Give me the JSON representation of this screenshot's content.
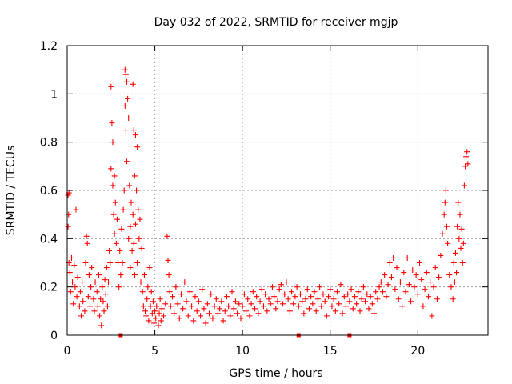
{
  "chart_data": {
    "type": "scatter",
    "title": "Day 032 of 2022, SRMTID for receiver mgjp",
    "xlabel": "GPS time / hours",
    "ylabel": "SRMTID / TECUs",
    "xlim": [
      0,
      24
    ],
    "ylim": [
      0,
      1.2
    ],
    "x_ticks": [
      0,
      5,
      10,
      15,
      20
    ],
    "x_tick_labels": [
      "0",
      "5",
      "10",
      "15",
      "20"
    ],
    "y_ticks": [
      0,
      0.2,
      0.4,
      0.6,
      0.8,
      1.0,
      1.2
    ],
    "y_tick_labels": [
      "0",
      "0.2",
      "0.4",
      "0.6",
      "0.8",
      "1",
      "1.2"
    ],
    "grid": true,
    "marker": "plus",
    "series": [
      {
        "name": "SRMTID",
        "color": "#ff0000",
        "points": [
          [
            0.05,
            0.58
          ],
          [
            0.05,
            0.45
          ],
          [
            0.08,
            0.5
          ],
          [
            0.1,
            0.59
          ],
          [
            0.1,
            0.3
          ],
          [
            0.15,
            0.26
          ],
          [
            0.2,
            0.18
          ],
          [
            0.25,
            0.32
          ],
          [
            0.3,
            0.22
          ],
          [
            0.35,
            0.13
          ],
          [
            0.4,
            0.29
          ],
          [
            0.45,
            0.2
          ],
          [
            0.5,
            0.52
          ],
          [
            0.55,
            0.16
          ],
          [
            0.6,
            0.24
          ],
          [
            0.7,
            0.12
          ],
          [
            0.75,
            0.18
          ],
          [
            0.8,
            0.08
          ],
          [
            0.85,
            0.22
          ],
          [
            0.9,
            0.14
          ],
          [
            1.0,
            0.1
          ],
          [
            1.05,
            0.3
          ],
          [
            1.1,
            0.41
          ],
          [
            1.15,
            0.38
          ],
          [
            1.2,
            0.16
          ],
          [
            1.25,
            0.25
          ],
          [
            1.3,
            0.12
          ],
          [
            1.35,
            0.2
          ],
          [
            1.4,
            0.28
          ],
          [
            1.5,
            0.15
          ],
          [
            1.55,
            0.1
          ],
          [
            1.6,
            0.22
          ],
          [
            1.7,
            0.18
          ],
          [
            1.75,
            0.12
          ],
          [
            1.8,
            0.25
          ],
          [
            1.85,
            0.08
          ],
          [
            1.9,
            0.15
          ],
          [
            1.95,
            0.04
          ],
          [
            2.0,
            0.2
          ],
          [
            2.05,
            0.14
          ],
          [
            2.1,
            0.1
          ],
          [
            2.15,
            0.23
          ],
          [
            2.2,
            0.17
          ],
          [
            2.25,
            0.28
          ],
          [
            2.3,
            0.12
          ],
          [
            2.35,
            0.22
          ],
          [
            2.4,
            0.35
          ],
          [
            2.45,
            0.3
          ],
          [
            2.5,
            0.69
          ],
          [
            2.5,
            1.03
          ],
          [
            2.55,
            0.88
          ],
          [
            2.6,
            0.62
          ],
          [
            2.6,
            0.8
          ],
          [
            2.65,
            0.5
          ],
          [
            2.7,
            0.66
          ],
          [
            2.7,
            0.42
          ],
          [
            2.75,
            0.55
          ],
          [
            2.8,
            0.38
          ],
          [
            2.85,
            0.48
          ],
          [
            2.9,
            0.3
          ],
          [
            2.95,
            0.2
          ],
          [
            3.0,
            0.35
          ],
          [
            3.05,
            0.25
          ],
          [
            3.1,
            0.44
          ],
          [
            3.15,
            0.3
          ],
          [
            3.2,
            0.52
          ],
          [
            3.25,
            0.6
          ],
          [
            3.3,
            0.95
          ],
          [
            3.3,
            1.1
          ],
          [
            3.35,
            1.08
          ],
          [
            3.35,
            0.85
          ],
          [
            3.4,
            1.05
          ],
          [
            3.4,
            0.72
          ],
          [
            3.45,
            0.98
          ],
          [
            3.5,
            0.9
          ],
          [
            3.5,
            0.4
          ],
          [
            3.55,
            0.62
          ],
          [
            3.6,
            0.45
          ],
          [
            3.6,
            0.28
          ],
          [
            3.65,
            0.55
          ],
          [
            3.7,
            0.35
          ],
          [
            3.75,
            1.04
          ],
          [
            3.75,
            0.5
          ],
          [
            3.8,
            0.85
          ],
          [
            3.8,
            0.38
          ],
          [
            3.85,
            0.66
          ],
          [
            3.85,
            0.25
          ],
          [
            3.9,
            0.83
          ],
          [
            3.9,
            0.46
          ],
          [
            3.95,
            0.6
          ],
          [
            4.0,
            0.78
          ],
          [
            4.0,
            0.3
          ],
          [
            4.05,
            0.52
          ],
          [
            4.1,
            0.4
          ],
          [
            4.15,
            0.48
          ],
          [
            4.2,
            0.22
          ],
          [
            4.25,
            0.36
          ],
          [
            4.3,
            0.18
          ],
          [
            4.35,
            0.12
          ],
          [
            4.4,
            0.25
          ],
          [
            4.45,
            0.1
          ],
          [
            4.5,
            0.08
          ],
          [
            4.55,
            0.15
          ],
          [
            4.6,
            0.2
          ],
          [
            4.65,
            0.06
          ],
          [
            4.7,
            0.28
          ],
          [
            4.75,
            0.12
          ],
          [
            4.8,
            0.18
          ],
          [
            4.85,
            0.09
          ],
          [
            4.9,
            0.14
          ],
          [
            4.95,
            0.05
          ],
          [
            5.0,
            0.1
          ],
          [
            5.05,
            0.07
          ],
          [
            5.1,
            0.12
          ],
          [
            5.2,
            0.04
          ],
          [
            5.25,
            0.09
          ],
          [
            5.3,
            0.15
          ],
          [
            5.35,
            0.06
          ],
          [
            5.4,
            0.11
          ],
          [
            5.5,
            0.08
          ],
          [
            5.6,
            0.13
          ],
          [
            5.7,
            0.41
          ],
          [
            5.75,
            0.31
          ],
          [
            5.8,
            0.25
          ],
          [
            5.85,
            0.18
          ],
          [
            5.9,
            0.12
          ],
          [
            6.0,
            0.16
          ],
          [
            6.1,
            0.09
          ],
          [
            6.2,
            0.2
          ],
          [
            6.3,
            0.13
          ],
          [
            6.4,
            0.07
          ],
          [
            6.5,
            0.17
          ],
          [
            6.6,
            0.11
          ],
          [
            6.7,
            0.22
          ],
          [
            6.8,
            0.14
          ],
          [
            6.9,
            0.08
          ],
          [
            7.0,
            0.18
          ],
          [
            7.1,
            0.12
          ],
          [
            7.2,
            0.06
          ],
          [
            7.3,
            0.16
          ],
          [
            7.4,
            0.1
          ],
          [
            7.5,
            0.14
          ],
          [
            7.6,
            0.08
          ],
          [
            7.7,
            0.19
          ],
          [
            7.8,
            0.11
          ],
          [
            7.9,
            0.05
          ],
          [
            8.0,
            0.13
          ],
          [
            8.1,
            0.09
          ],
          [
            8.2,
            0.17
          ],
          [
            8.3,
            0.07
          ],
          [
            8.4,
            0.12
          ],
          [
            8.5,
            0.15
          ],
          [
            8.6,
            0.09
          ],
          [
            8.7,
            0.11
          ],
          [
            8.8,
            0.14
          ],
          [
            8.9,
            0.06
          ],
          [
            9.0,
            0.1
          ],
          [
            9.1,
            0.16
          ],
          [
            9.2,
            0.12
          ],
          [
            9.3,
            0.08
          ],
          [
            9.4,
            0.18
          ],
          [
            9.5,
            0.11
          ],
          [
            9.6,
            0.14
          ],
          [
            9.7,
            0.09
          ],
          [
            9.8,
            0.13
          ],
          [
            9.9,
            0.07
          ],
          [
            10.0,
            0.12
          ],
          [
            10.1,
            0.17
          ],
          [
            10.2,
            0.1
          ],
          [
            10.3,
            0.15
          ],
          [
            10.4,
            0.08
          ],
          [
            10.5,
            0.13
          ],
          [
            10.6,
            0.18
          ],
          [
            10.7,
            0.11
          ],
          [
            10.8,
            0.16
          ],
          [
            10.9,
            0.09
          ],
          [
            11.0,
            0.14
          ],
          [
            11.1,
            0.19
          ],
          [
            11.2,
            0.12
          ],
          [
            11.3,
            0.17
          ],
          [
            11.4,
            0.1
          ],
          [
            11.5,
            0.15
          ],
          [
            11.6,
            0.13
          ],
          [
            11.7,
            0.2
          ],
          [
            11.8,
            0.16
          ],
          [
            11.9,
            0.11
          ],
          [
            12.0,
            0.14
          ],
          [
            12.1,
            0.19
          ],
          [
            12.2,
            0.21
          ],
          [
            12.3,
            0.13
          ],
          [
            12.4,
            0.17
          ],
          [
            12.5,
            0.22
          ],
          [
            12.6,
            0.15
          ],
          [
            12.7,
            0.1
          ],
          [
            12.8,
            0.18
          ],
          [
            12.9,
            0.13
          ],
          [
            13.0,
            0.16
          ],
          [
            13.1,
            0.2
          ],
          [
            13.2,
            0.12
          ],
          [
            13.3,
            0.17
          ],
          [
            13.4,
            0.14
          ],
          [
            13.5,
            0.09
          ],
          [
            13.6,
            0.15
          ],
          [
            13.7,
            0.19
          ],
          [
            13.8,
            0.11
          ],
          [
            13.9,
            0.16
          ],
          [
            14.0,
            0.13
          ],
          [
            14.1,
            0.18
          ],
          [
            14.2,
            0.1
          ],
          [
            14.3,
            0.15
          ],
          [
            14.4,
            0.2
          ],
          [
            14.5,
            0.12
          ],
          [
            14.6,
            0.17
          ],
          [
            14.7,
            0.14
          ],
          [
            14.8,
            0.08
          ],
          [
            14.9,
            0.16
          ],
          [
            15.0,
            0.19
          ],
          [
            15.1,
            0.12
          ],
          [
            15.2,
            0.15
          ],
          [
            15.3,
            0.1
          ],
          [
            15.4,
            0.18
          ],
          [
            15.5,
            0.13
          ],
          [
            15.6,
            0.21
          ],
          [
            15.7,
            0.09
          ],
          [
            15.8,
            0.16
          ],
          [
            15.9,
            0.12
          ],
          [
            16.0,
            0.17
          ],
          [
            16.1,
            0.14
          ],
          [
            16.2,
            0.19
          ],
          [
            16.3,
            0.11
          ],
          [
            16.4,
            0.16
          ],
          [
            16.5,
            0.13
          ],
          [
            16.6,
            0.18
          ],
          [
            16.7,
            0.1
          ],
          [
            16.8,
            0.15
          ],
          [
            16.9,
            0.2
          ],
          [
            17.0,
            0.14
          ],
          [
            17.1,
            0.17
          ],
          [
            17.2,
            0.11
          ],
          [
            17.3,
            0.16
          ],
          [
            17.4,
            0.13
          ],
          [
            17.5,
            0.09
          ],
          [
            17.6,
            0.18
          ],
          [
            17.7,
            0.15
          ],
          [
            17.8,
            0.2
          ],
          [
            17.9,
            0.22
          ],
          [
            18.0,
            0.18
          ],
          [
            18.1,
            0.25
          ],
          [
            18.2,
            0.16
          ],
          [
            18.3,
            0.21
          ],
          [
            18.4,
            0.3
          ],
          [
            18.5,
            0.24
          ],
          [
            18.6,
            0.32
          ],
          [
            18.7,
            0.19
          ],
          [
            18.8,
            0.28
          ],
          [
            18.9,
            0.15
          ],
          [
            19.0,
            0.22
          ],
          [
            19.1,
            0.12
          ],
          [
            19.2,
            0.26
          ],
          [
            19.3,
            0.18
          ],
          [
            19.4,
            0.32
          ],
          [
            19.5,
            0.21
          ],
          [
            19.6,
            0.14
          ],
          [
            19.7,
            0.27
          ],
          [
            19.8,
            0.2
          ],
          [
            19.9,
            0.25
          ],
          [
            20.0,
            0.17
          ],
          [
            20.1,
            0.3
          ],
          [
            20.2,
            0.23
          ],
          [
            20.3,
            0.12
          ],
          [
            20.4,
            0.19
          ],
          [
            20.5,
            0.26
          ],
          [
            20.6,
            0.16
          ],
          [
            20.7,
            0.22
          ],
          [
            20.8,
            0.08
          ],
          [
            20.9,
            0.2
          ],
          [
            21.0,
            0.28
          ],
          [
            21.1,
            0.15
          ],
          [
            21.2,
            0.24
          ],
          [
            21.3,
            0.33
          ],
          [
            21.4,
            0.42
          ],
          [
            21.5,
            0.5
          ],
          [
            21.55,
            0.55
          ],
          [
            21.6,
            0.6
          ],
          [
            21.65,
            0.45
          ],
          [
            21.7,
            0.38
          ],
          [
            21.8,
            0.25
          ],
          [
            21.9,
            0.2
          ],
          [
            22.0,
            0.15
          ],
          [
            22.05,
            0.3
          ],
          [
            22.1,
            0.22
          ],
          [
            22.15,
            0.34
          ],
          [
            22.2,
            0.26
          ],
          [
            22.25,
            0.45
          ],
          [
            22.3,
            0.55
          ],
          [
            22.35,
            0.4
          ],
          [
            22.4,
            0.5
          ],
          [
            22.45,
            0.36
          ],
          [
            22.5,
            0.44
          ],
          [
            22.55,
            0.3
          ],
          [
            22.6,
            0.38
          ],
          [
            22.65,
            0.62
          ],
          [
            22.7,
            0.7
          ],
          [
            22.75,
            0.74
          ],
          [
            22.8,
            0.76
          ],
          [
            22.85,
            0.71
          ]
        ]
      }
    ],
    "baseline_markers_x": [
      3.05,
      13.2,
      16.1
    ]
  }
}
